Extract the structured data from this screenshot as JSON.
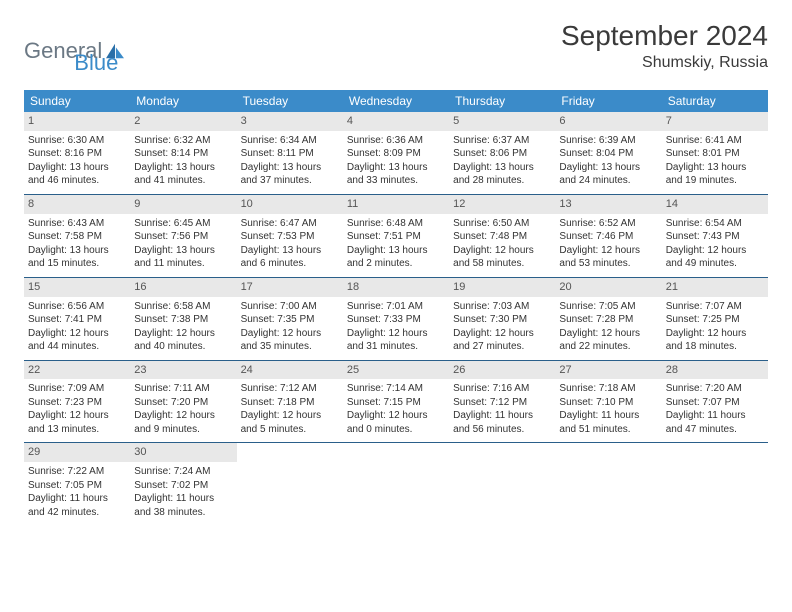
{
  "brand": {
    "general": "General",
    "blue": "Blue"
  },
  "title": "September 2024",
  "location": "Shumskiy, Russia",
  "weekdays": [
    "Sunday",
    "Monday",
    "Tuesday",
    "Wednesday",
    "Thursday",
    "Friday",
    "Saturday"
  ],
  "colors": {
    "header_bg": "#3b8bc9",
    "header_text": "#ffffff",
    "daynum_bg": "#e8e8e8",
    "row_border": "#2a5f8a",
    "logo_gray": "#6b7884",
    "logo_blue": "#3b8bc9"
  },
  "days": [
    {
      "n": "1",
      "sr": "6:30 AM",
      "ss": "8:16 PM",
      "dl": "13 hours and 46 minutes."
    },
    {
      "n": "2",
      "sr": "6:32 AM",
      "ss": "8:14 PM",
      "dl": "13 hours and 41 minutes."
    },
    {
      "n": "3",
      "sr": "6:34 AM",
      "ss": "8:11 PM",
      "dl": "13 hours and 37 minutes."
    },
    {
      "n": "4",
      "sr": "6:36 AM",
      "ss": "8:09 PM",
      "dl": "13 hours and 33 minutes."
    },
    {
      "n": "5",
      "sr": "6:37 AM",
      "ss": "8:06 PM",
      "dl": "13 hours and 28 minutes."
    },
    {
      "n": "6",
      "sr": "6:39 AM",
      "ss": "8:04 PM",
      "dl": "13 hours and 24 minutes."
    },
    {
      "n": "7",
      "sr": "6:41 AM",
      "ss": "8:01 PM",
      "dl": "13 hours and 19 minutes."
    },
    {
      "n": "8",
      "sr": "6:43 AM",
      "ss": "7:58 PM",
      "dl": "13 hours and 15 minutes."
    },
    {
      "n": "9",
      "sr": "6:45 AM",
      "ss": "7:56 PM",
      "dl": "13 hours and 11 minutes."
    },
    {
      "n": "10",
      "sr": "6:47 AM",
      "ss": "7:53 PM",
      "dl": "13 hours and 6 minutes."
    },
    {
      "n": "11",
      "sr": "6:48 AM",
      "ss": "7:51 PM",
      "dl": "13 hours and 2 minutes."
    },
    {
      "n": "12",
      "sr": "6:50 AM",
      "ss": "7:48 PM",
      "dl": "12 hours and 58 minutes."
    },
    {
      "n": "13",
      "sr": "6:52 AM",
      "ss": "7:46 PM",
      "dl": "12 hours and 53 minutes."
    },
    {
      "n": "14",
      "sr": "6:54 AM",
      "ss": "7:43 PM",
      "dl": "12 hours and 49 minutes."
    },
    {
      "n": "15",
      "sr": "6:56 AM",
      "ss": "7:41 PM",
      "dl": "12 hours and 44 minutes."
    },
    {
      "n": "16",
      "sr": "6:58 AM",
      "ss": "7:38 PM",
      "dl": "12 hours and 40 minutes."
    },
    {
      "n": "17",
      "sr": "7:00 AM",
      "ss": "7:35 PM",
      "dl": "12 hours and 35 minutes."
    },
    {
      "n": "18",
      "sr": "7:01 AM",
      "ss": "7:33 PM",
      "dl": "12 hours and 31 minutes."
    },
    {
      "n": "19",
      "sr": "7:03 AM",
      "ss": "7:30 PM",
      "dl": "12 hours and 27 minutes."
    },
    {
      "n": "20",
      "sr": "7:05 AM",
      "ss": "7:28 PM",
      "dl": "12 hours and 22 minutes."
    },
    {
      "n": "21",
      "sr": "7:07 AM",
      "ss": "7:25 PM",
      "dl": "12 hours and 18 minutes."
    },
    {
      "n": "22",
      "sr": "7:09 AM",
      "ss": "7:23 PM",
      "dl": "12 hours and 13 minutes."
    },
    {
      "n": "23",
      "sr": "7:11 AM",
      "ss": "7:20 PM",
      "dl": "12 hours and 9 minutes."
    },
    {
      "n": "24",
      "sr": "7:12 AM",
      "ss": "7:18 PM",
      "dl": "12 hours and 5 minutes."
    },
    {
      "n": "25",
      "sr": "7:14 AM",
      "ss": "7:15 PM",
      "dl": "12 hours and 0 minutes."
    },
    {
      "n": "26",
      "sr": "7:16 AM",
      "ss": "7:12 PM",
      "dl": "11 hours and 56 minutes."
    },
    {
      "n": "27",
      "sr": "7:18 AM",
      "ss": "7:10 PM",
      "dl": "11 hours and 51 minutes."
    },
    {
      "n": "28",
      "sr": "7:20 AM",
      "ss": "7:07 PM",
      "dl": "11 hours and 47 minutes."
    },
    {
      "n": "29",
      "sr": "7:22 AM",
      "ss": "7:05 PM",
      "dl": "11 hours and 42 minutes."
    },
    {
      "n": "30",
      "sr": "7:24 AM",
      "ss": "7:02 PM",
      "dl": "11 hours and 38 minutes."
    }
  ],
  "labels": {
    "sunrise": "Sunrise:",
    "sunset": "Sunset:",
    "daylight": "Daylight:"
  },
  "layout": {
    "first_day_column": 0,
    "total_days": 30
  }
}
